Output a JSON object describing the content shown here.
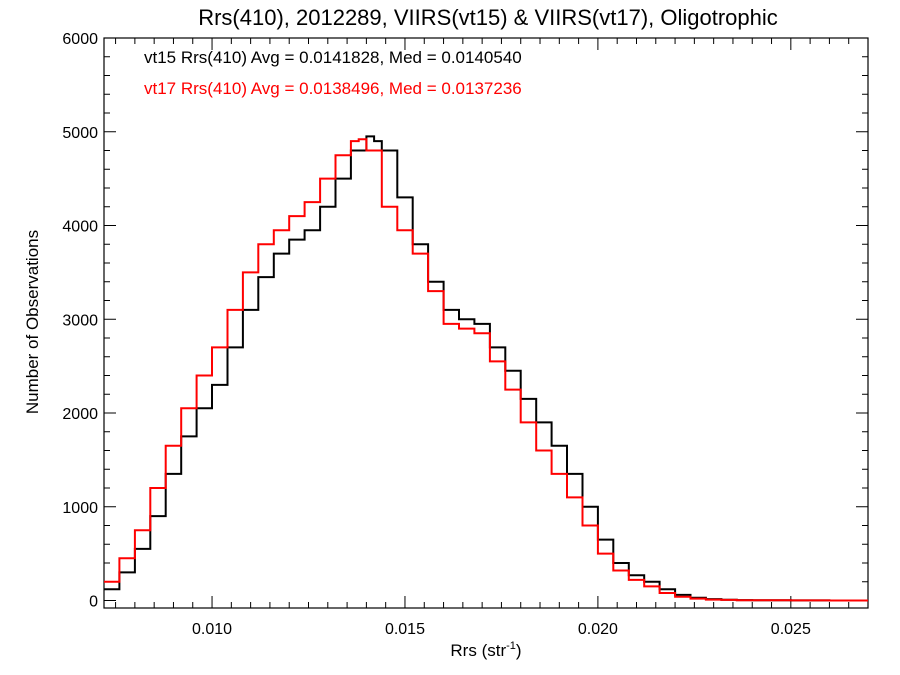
{
  "chart_data": {
    "type": "line",
    "title": "Rrs(410), 2012289, VIIRS(vt15) & VIIRS(vt17), Oligotrophic",
    "xlabel": "Rrs (str",
    "xlabel_sup": "-1",
    "xlabel_close": ")",
    "ylabel": "Number of Observations",
    "xlim": [
      0.0072,
      0.027
    ],
    "ylim": [
      -80,
      6000
    ],
    "xticks": [
      0.01,
      0.015,
      0.02,
      0.025
    ],
    "xtick_labels": [
      "0.010",
      "0.015",
      "0.020",
      "0.025"
    ],
    "yticks": [
      0,
      1000,
      2000,
      3000,
      4000,
      5000,
      6000
    ],
    "ytick_labels": [
      "0",
      "1000",
      "2000",
      "3000",
      "4000",
      "5000",
      "6000"
    ],
    "step": true,
    "grid": false,
    "legend_position": "top-left",
    "series": [
      {
        "name": "vt15 Rrs(410) Avg = 0.0141828, Med = 0.0140540",
        "color": "#000000",
        "x": [
          0.0072,
          0.0076,
          0.008,
          0.0084,
          0.0088,
          0.0092,
          0.0096,
          0.01,
          0.0104,
          0.0108,
          0.0112,
          0.0116,
          0.012,
          0.0124,
          0.0128,
          0.0132,
          0.0136,
          0.014,
          0.0142,
          0.0144,
          0.0148,
          0.0152,
          0.0156,
          0.016,
          0.0164,
          0.0168,
          0.0172,
          0.0176,
          0.018,
          0.0184,
          0.0188,
          0.0192,
          0.0196,
          0.02,
          0.0204,
          0.0208,
          0.0212,
          0.0216,
          0.022,
          0.0224,
          0.0228,
          0.0232,
          0.0236,
          0.024,
          0.025,
          0.026,
          0.027
        ],
        "y": [
          120,
          300,
          550,
          900,
          1350,
          1750,
          2050,
          2300,
          2700,
          3100,
          3450,
          3700,
          3850,
          3950,
          4200,
          4500,
          4800,
          4950,
          4900,
          4800,
          4300,
          3800,
          3400,
          3100,
          3000,
          2950,
          2700,
          2450,
          2150,
          1900,
          1650,
          1350,
          1000,
          650,
          400,
          270,
          200,
          120,
          60,
          30,
          15,
          8,
          4,
          2,
          1,
          0,
          0
        ]
      },
      {
        "name": "vt17 Rrs(410) Avg = 0.0138496, Med = 0.0137236",
        "color": "#ff0000",
        "x": [
          0.0072,
          0.0076,
          0.008,
          0.0084,
          0.0088,
          0.0092,
          0.0096,
          0.01,
          0.0104,
          0.0108,
          0.0112,
          0.0116,
          0.012,
          0.0124,
          0.0128,
          0.0132,
          0.0136,
          0.0138,
          0.014,
          0.0144,
          0.0148,
          0.0152,
          0.0156,
          0.016,
          0.0164,
          0.0168,
          0.0172,
          0.0176,
          0.018,
          0.0184,
          0.0188,
          0.0192,
          0.0196,
          0.02,
          0.0204,
          0.0208,
          0.0212,
          0.0216,
          0.022,
          0.0224,
          0.0228,
          0.0232,
          0.0236,
          0.024,
          0.025,
          0.026,
          0.027
        ],
        "y": [
          200,
          450,
          750,
          1200,
          1650,
          2050,
          2400,
          2700,
          3100,
          3500,
          3800,
          3950,
          4100,
          4250,
          4500,
          4750,
          4900,
          4920,
          4800,
          4200,
          3950,
          3700,
          3300,
          2950,
          2900,
          2850,
          2550,
          2250,
          1900,
          1600,
          1350,
          1100,
          800,
          500,
          320,
          220,
          150,
          80,
          40,
          20,
          10,
          6,
          3,
          2,
          1,
          0,
          0
        ]
      }
    ]
  }
}
